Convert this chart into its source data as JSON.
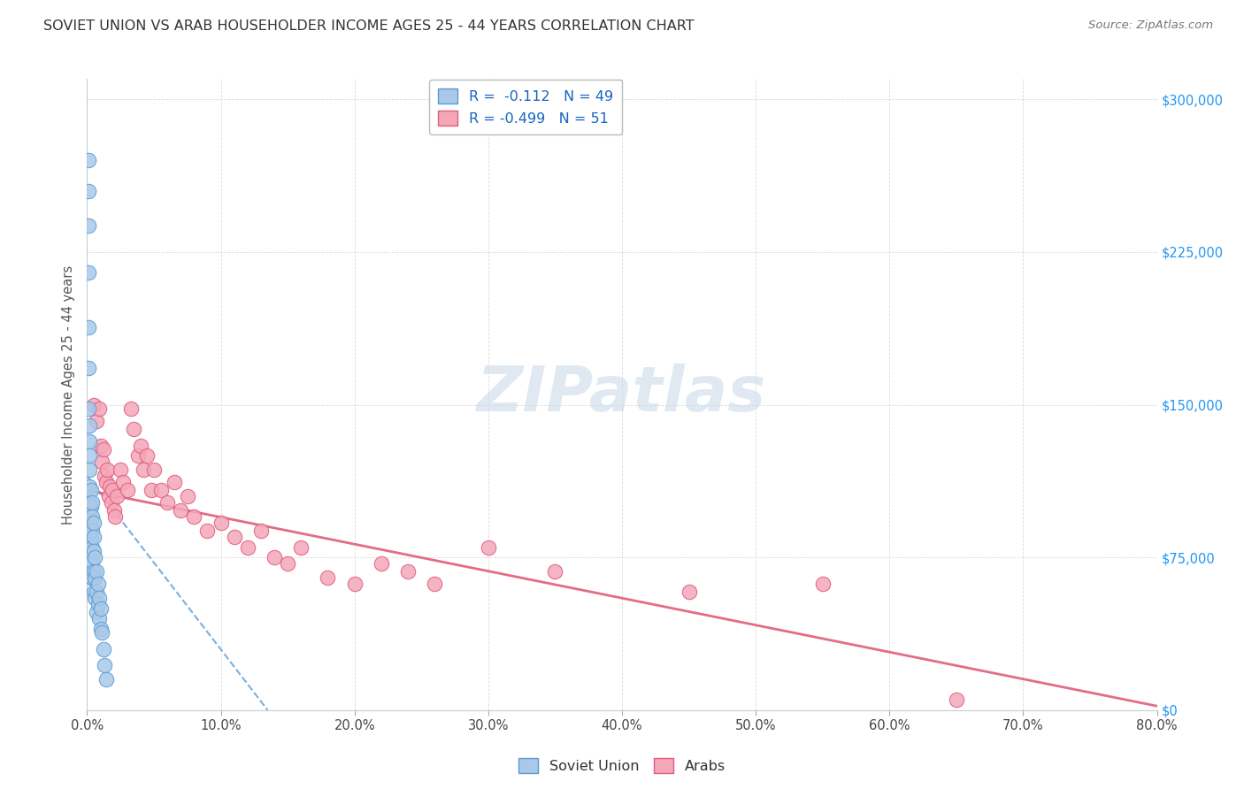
{
  "title": "SOVIET UNION VS ARAB HOUSEHOLDER INCOME AGES 25 - 44 YEARS CORRELATION CHART",
  "source": "Source: ZipAtlas.com",
  "ylabel": "Householder Income Ages 25 - 44 years",
  "xlabel_ticks": [
    "0.0%",
    "10.0%",
    "20.0%",
    "30.0%",
    "40.0%",
    "50.0%",
    "60.0%",
    "70.0%",
    "80.0%"
  ],
  "ytick_labels": [
    "$0",
    "$75,000",
    "$150,000",
    "$225,000",
    "$300,000"
  ],
  "ytick_values": [
    0,
    75000,
    150000,
    225000,
    300000
  ],
  "xlim": [
    0.0,
    0.8
  ],
  "ylim": [
    0,
    310000
  ],
  "legend_soviet": "Soviet Union",
  "legend_arab": "Arabs",
  "soviet_R": "-0.112",
  "soviet_N": "49",
  "arab_R": "-0.499",
  "arab_N": "51",
  "soviet_color": "#aac9e8",
  "soviet_edge": "#5b9bd5",
  "arab_color": "#f4a7b9",
  "arab_edge": "#e05c7a",
  "trendline_soviet_color": "#5b9bd5",
  "trendline_arab_color": "#e05c7a",
  "background_color": "#ffffff",
  "grid_color": "#cccccc",
  "title_color": "#333333",
  "source_color": "#777777",
  "axis_label_color": "#555555",
  "right_ytick_color": "#2196F3",
  "soviet_x": [
    0.001,
    0.001,
    0.001,
    0.001,
    0.001,
    0.001,
    0.001,
    0.002,
    0.002,
    0.002,
    0.002,
    0.002,
    0.002,
    0.002,
    0.002,
    0.003,
    0.003,
    0.003,
    0.003,
    0.003,
    0.003,
    0.003,
    0.004,
    0.004,
    0.004,
    0.004,
    0.004,
    0.004,
    0.005,
    0.005,
    0.005,
    0.005,
    0.005,
    0.006,
    0.006,
    0.006,
    0.007,
    0.007,
    0.007,
    0.008,
    0.008,
    0.009,
    0.009,
    0.01,
    0.01,
    0.011,
    0.012,
    0.013,
    0.014
  ],
  "soviet_y": [
    270000,
    255000,
    238000,
    215000,
    188000,
    168000,
    148000,
    140000,
    132000,
    125000,
    118000,
    110000,
    102000,
    95000,
    88000,
    108000,
    100000,
    92000,
    85000,
    78000,
    72000,
    65000,
    102000,
    95000,
    88000,
    80000,
    73000,
    65000,
    92000,
    85000,
    78000,
    68000,
    58000,
    75000,
    65000,
    55000,
    68000,
    58000,
    48000,
    62000,
    52000,
    55000,
    45000,
    50000,
    40000,
    38000,
    30000,
    22000,
    15000
  ],
  "arab_x": [
    0.005,
    0.007,
    0.009,
    0.01,
    0.011,
    0.012,
    0.013,
    0.014,
    0.015,
    0.016,
    0.017,
    0.018,
    0.019,
    0.02,
    0.021,
    0.022,
    0.025,
    0.027,
    0.03,
    0.033,
    0.035,
    0.038,
    0.04,
    0.042,
    0.045,
    0.048,
    0.05,
    0.055,
    0.06,
    0.065,
    0.07,
    0.075,
    0.08,
    0.09,
    0.1,
    0.11,
    0.12,
    0.13,
    0.14,
    0.15,
    0.16,
    0.18,
    0.2,
    0.22,
    0.24,
    0.26,
    0.3,
    0.35,
    0.45,
    0.55,
    0.65
  ],
  "arab_y": [
    150000,
    142000,
    148000,
    130000,
    122000,
    128000,
    115000,
    112000,
    118000,
    105000,
    110000,
    102000,
    108000,
    98000,
    95000,
    105000,
    118000,
    112000,
    108000,
    148000,
    138000,
    125000,
    130000,
    118000,
    125000,
    108000,
    118000,
    108000,
    102000,
    112000,
    98000,
    105000,
    95000,
    88000,
    92000,
    85000,
    80000,
    88000,
    75000,
    72000,
    80000,
    65000,
    62000,
    72000,
    68000,
    62000,
    80000,
    68000,
    58000,
    62000,
    5000
  ],
  "soviet_trend_x": [
    0.0,
    0.135
  ],
  "soviet_trend_y": [
    115000,
    0
  ],
  "arab_trend_x": [
    0.0,
    0.8
  ],
  "arab_trend_y": [
    108000,
    2000
  ]
}
